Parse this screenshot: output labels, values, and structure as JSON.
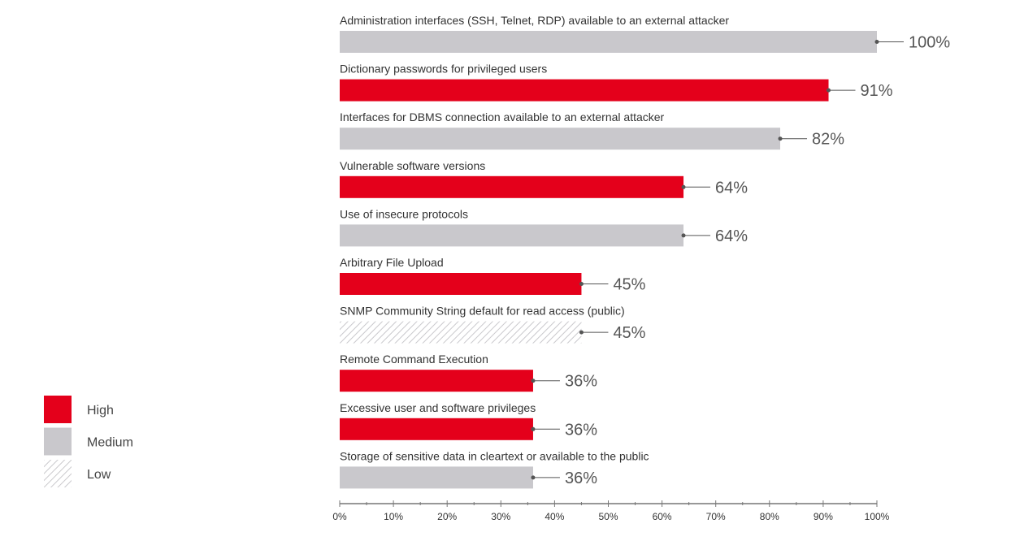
{
  "chart_data": {
    "type": "bar",
    "orientation": "horizontal",
    "title": "",
    "xlabel": "",
    "ylabel": "",
    "xlim": [
      0,
      100
    ],
    "grid": false,
    "legend_placement": "bottom-left",
    "categories": [
      "Administration interfaces (SSH, Telnet, RDP) available to an external attacker",
      "Dictionary passwords for privileged users",
      "Interfaces for DBMS connection available to an external attacker",
      "Vulnerable software versions",
      "Use of insecure protocols",
      "Arbitrary File Upload",
      "SNMP Community String default for read access (public)",
      "Remote Command Execution",
      "Excessive user and software privileges",
      "Storage of sensitive data in cleartext or available to the public"
    ],
    "values": [
      100,
      91,
      82,
      64,
      64,
      45,
      45,
      36,
      36,
      36
    ],
    "value_labels": [
      "100%",
      "91%",
      "82%",
      "64%",
      "64%",
      "45%",
      "45%",
      "36%",
      "36%",
      "36%"
    ],
    "severity": [
      "Medium",
      "High",
      "Medium",
      "High",
      "Medium",
      "High",
      "Low",
      "High",
      "High",
      "Medium"
    ],
    "x_ticks": [
      "0%",
      "10%",
      "20%",
      "30%",
      "40%",
      "50%",
      "60%",
      "70%",
      "80%",
      "90%",
      "100%"
    ],
    "legend": [
      {
        "label": "High",
        "color": "#e4001b"
      },
      {
        "label": "Medium",
        "color": "#c9c8cc"
      },
      {
        "label": "Low",
        "color": "hatched"
      }
    ]
  }
}
